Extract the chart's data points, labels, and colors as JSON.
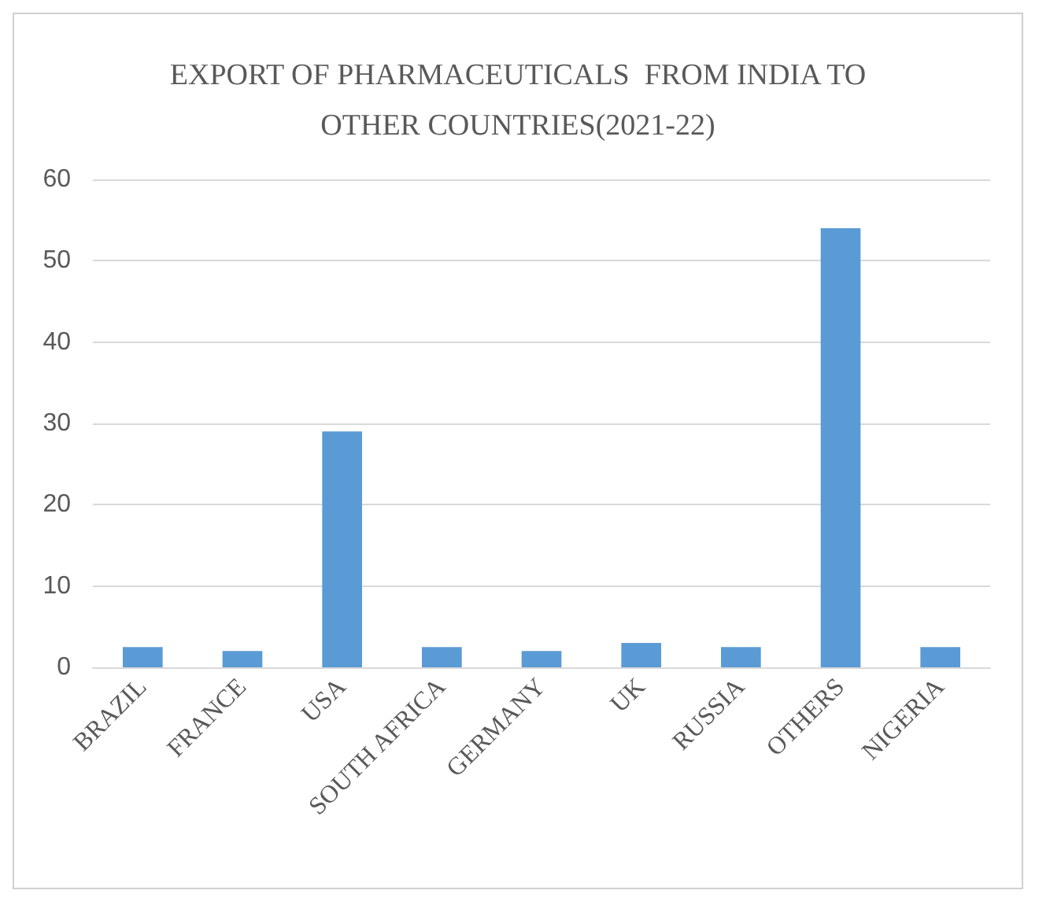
{
  "chart_data": {
    "type": "bar",
    "title": "EXPORT OF PHARMACEUTICALS  FROM INDIA TO\nOTHER COUNTRIES(2021-22)",
    "categories": [
      "BRAZIL",
      "FRANCE",
      "USA",
      "SOUTH AFRICA",
      "GERMANY",
      "UK",
      "RUSSIA",
      "OTHERS",
      "NIGERIA"
    ],
    "values": [
      2.5,
      2,
      29,
      2.5,
      2,
      3,
      2.5,
      54,
      2.5
    ],
    "color": "#5b9bd5",
    "ylim": [
      0,
      60
    ],
    "yticks": [
      0,
      10,
      20,
      30,
      40,
      50,
      60
    ],
    "grid": "y"
  }
}
